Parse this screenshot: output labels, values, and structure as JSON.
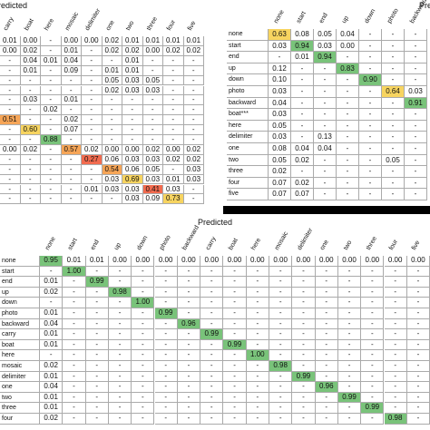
{
  "tables": [
    {
      "title": "Predicted",
      "columns": [
        "carry",
        "boat",
        "here",
        "mosaic",
        "delimiter",
        "one",
        "two",
        "three",
        "four",
        "five"
      ],
      "rows": [
        {
          "cells": [
            "0.01",
            "0.00",
            "-",
            "0.00",
            "0.00",
            "0.02",
            "0.01",
            "0.01",
            "0.01",
            "0.01"
          ]
        },
        {
          "cells": [
            "0.00",
            "0.02",
            "-",
            "0.01",
            "-",
            "0.02",
            "0.02",
            "0.00",
            "0.02",
            "0.02"
          ]
        },
        {
          "cells": [
            "-",
            "0.04",
            "0.01",
            "0.04",
            "-",
            "-",
            "0.01",
            "-",
            "-",
            "-"
          ]
        },
        {
          "cells": [
            "-",
            "0.01",
            "-",
            "0.09",
            "-",
            "0.01",
            "0.01",
            "-",
            "-",
            "-"
          ]
        },
        {
          "cells": [
            "-",
            "-",
            "-",
            "-",
            "-",
            "0.05",
            "0.03",
            "0.05",
            "-",
            "-"
          ]
        },
        {
          "cells": [
            "-",
            "-",
            "-",
            "-",
            "-",
            "0.02",
            "0.03",
            "0.03",
            "-",
            "-"
          ]
        },
        {
          "cells": [
            "-",
            "0.03",
            "-",
            "0.01",
            "-",
            "-",
            "-",
            "-",
            "-",
            "-"
          ]
        },
        {
          "cells": [
            "-",
            "-",
            "0.02",
            "-",
            "-",
            "-",
            "-",
            "-",
            "-",
            "-"
          ]
        },
        {
          "cells": [
            "0.51",
            "-",
            "-",
            "0.02",
            "-",
            "-",
            "-",
            "-",
            "-",
            "-"
          ]
        },
        {
          "cells": [
            "-",
            "0.60",
            "-",
            "0.07",
            "-",
            "-",
            "-",
            "-",
            "-",
            "-"
          ]
        },
        {
          "cells": [
            "-",
            "-",
            "0.88",
            "-",
            "-",
            "-",
            "-",
            "-",
            "-",
            "-"
          ]
        },
        {
          "cells": [
            "0.00",
            "0.02",
            "-",
            "0.57",
            "0.02",
            "0.00",
            "0.00",
            "0.02",
            "0.00",
            "0.02"
          ]
        },
        {
          "cells": [
            "-",
            "-",
            "-",
            "-",
            "0.27",
            "0.06",
            "0.03",
            "0.03",
            "0.02",
            "0.02"
          ]
        },
        {
          "cells": [
            "-",
            "-",
            "-",
            "-",
            "-",
            "0.54",
            "0.06",
            "0.05",
            "-",
            "0.03"
          ]
        },
        {
          "cells": [
            "-",
            "-",
            "-",
            "-",
            "-",
            "0.03",
            "0.69",
            "0.03",
            "0.01",
            "0.03"
          ]
        },
        {
          "cells": [
            "-",
            "-",
            "-",
            "-",
            "0.01",
            "0.03",
            "0.03",
            "0.41",
            "0.03",
            "-"
          ]
        },
        {
          "cells": [
            "-",
            "-",
            "-",
            "-",
            "-",
            "-",
            "0.03",
            "0.09",
            "0.73",
            "-"
          ]
        }
      ]
    },
    {
      "title": "Predicted",
      "columns": [
        "none",
        "start",
        "end",
        "up",
        "down",
        "photo",
        "backward"
      ],
      "rows": [
        {
          "label": "none",
          "cells": [
            "0.63",
            "0.08",
            "0.05",
            "0.04",
            "-",
            "-",
            "-"
          ]
        },
        {
          "label": "start",
          "cells": [
            "0.03",
            "0.94",
            "0.03",
            "0.00",
            "-",
            "-",
            "-"
          ]
        },
        {
          "label": "end",
          "cells": [
            "-",
            "0.01",
            "0.94",
            "-",
            "-",
            "-",
            "-"
          ]
        },
        {
          "label": "up",
          "cells": [
            "0.12",
            "-",
            "-",
            "0.83",
            "-",
            "-",
            "-"
          ]
        },
        {
          "label": "down",
          "cells": [
            "0.10",
            "-",
            "-",
            "-",
            "0.90",
            "-",
            "-"
          ]
        },
        {
          "label": "photo",
          "cells": [
            "0.03",
            "-",
            "-",
            "-",
            "-",
            "0.64",
            "0.03"
          ]
        },
        {
          "label": "backward",
          "cells": [
            "0.04",
            "-",
            "-",
            "-",
            "-",
            "-",
            "0.91"
          ]
        },
        {
          "label": "boat***",
          "cells": [
            "0.03",
            "-",
            "-",
            "-",
            "-",
            "-",
            "-"
          ]
        },
        {
          "label": "here",
          "cells": [
            "0.05",
            "-",
            "-",
            "-",
            "-",
            "-",
            "-"
          ]
        },
        {
          "label": "delimiter",
          "cells": [
            "0.03",
            "-",
            "0.13",
            "-",
            "-",
            "-",
            "-"
          ]
        },
        {
          "label": "one",
          "cells": [
            "0.08",
            "0.04",
            "0.04",
            "-",
            "-",
            "-",
            "-"
          ]
        },
        {
          "label": "two",
          "cells": [
            "0.05",
            "0.02",
            "-",
            "-",
            "-",
            "0.05",
            "-"
          ]
        },
        {
          "label": "three",
          "cells": [
            "0.02",
            "-",
            "-",
            "-",
            "-",
            "-",
            "-"
          ]
        },
        {
          "label": "four",
          "cells": [
            "0.07",
            "0.02",
            "-",
            "-",
            "-",
            "-",
            "-"
          ]
        },
        {
          "label": "five",
          "cells": [
            "0.07",
            "0.07",
            "-",
            "-",
            "-",
            "-",
            "-"
          ]
        }
      ]
    },
    {
      "title": "Predicted",
      "columns": [
        "none",
        "start",
        "end",
        "up",
        "down",
        "photo",
        "backward",
        "carry",
        "boat",
        "here",
        "mosaic",
        "delimiter",
        "one",
        "two",
        "three",
        "four",
        "five"
      ],
      "rows": [
        {
          "label": "none",
          "cells": [
            "0.95",
            "0.01",
            "0.01",
            "0.00",
            "0.00",
            "0.00",
            "0.00",
            "0.00",
            "0.00",
            "0.00",
            "0.00",
            "0.00",
            "0.00",
            "0.00",
            "0.00",
            "0.00",
            "0.00"
          ]
        },
        {
          "label": "start",
          "cells": [
            "-",
            "1.00",
            "-",
            "-",
            "-",
            "-",
            "-",
            "-",
            "-",
            "-",
            "-",
            "-",
            "-",
            "-",
            "-",
            "-",
            "-"
          ]
        },
        {
          "label": "end",
          "cells": [
            "0.01",
            "-",
            "0.99",
            "-",
            "-",
            "-",
            "-",
            "-",
            "-",
            "-",
            "-",
            "-",
            "-",
            "-",
            "-",
            "-",
            "-"
          ]
        },
        {
          "label": "up",
          "cells": [
            "0.02",
            "-",
            "-",
            "0.98",
            "-",
            "-",
            "-",
            "-",
            "-",
            "-",
            "-",
            "-",
            "-",
            "-",
            "-",
            "-",
            "-"
          ]
        },
        {
          "label": "down",
          "cells": [
            "-",
            "-",
            "-",
            "-",
            "1.00",
            "-",
            "-",
            "-",
            "-",
            "-",
            "-",
            "-",
            "-",
            "-",
            "-",
            "-",
            "-"
          ]
        },
        {
          "label": "photo",
          "cells": [
            "0.01",
            "-",
            "-",
            "-",
            "-",
            "0.99",
            "-",
            "-",
            "-",
            "-",
            "-",
            "-",
            "-",
            "-",
            "-",
            "-",
            "-"
          ]
        },
        {
          "label": "backward",
          "cells": [
            "0.04",
            "-",
            "-",
            "-",
            "-",
            "-",
            "0.96",
            "-",
            "-",
            "-",
            "-",
            "-",
            "-",
            "-",
            "-",
            "-",
            "-"
          ]
        },
        {
          "label": "carry",
          "cells": [
            "0.01",
            "-",
            "-",
            "-",
            "-",
            "-",
            "-",
            "0.99",
            "-",
            "-",
            "-",
            "-",
            "-",
            "-",
            "-",
            "-",
            "-"
          ]
        },
        {
          "label": "boat",
          "cells": [
            "0.01",
            "-",
            "-",
            "-",
            "-",
            "-",
            "-",
            "-",
            "0.99",
            "-",
            "-",
            "-",
            "-",
            "-",
            "-",
            "-",
            "-"
          ]
        },
        {
          "label": "here",
          "cells": [
            "-",
            "-",
            "-",
            "-",
            "-",
            "-",
            "-",
            "-",
            "-",
            "1.00",
            "-",
            "-",
            "-",
            "-",
            "-",
            "-",
            "-"
          ]
        },
        {
          "label": "mosaic",
          "cells": [
            "0.02",
            "-",
            "-",
            "-",
            "-",
            "-",
            "-",
            "-",
            "-",
            "-",
            "0.98",
            "-",
            "-",
            "-",
            "-",
            "-",
            "-"
          ]
        },
        {
          "label": "delimiter",
          "cells": [
            "0.01",
            "-",
            "-",
            "-",
            "-",
            "-",
            "-",
            "-",
            "-",
            "-",
            "-",
            "0.99",
            "-",
            "-",
            "-",
            "-",
            "-"
          ]
        },
        {
          "label": "one",
          "cells": [
            "0.04",
            "-",
            "-",
            "-",
            "-",
            "-",
            "-",
            "-",
            "-",
            "-",
            "-",
            "-",
            "0.96",
            "-",
            "-",
            "-",
            "-"
          ]
        },
        {
          "label": "two",
          "cells": [
            "0.01",
            "-",
            "-",
            "-",
            "-",
            "-",
            "-",
            "-",
            "-",
            "-",
            "-",
            "-",
            "-",
            "0.99",
            "-",
            "-",
            "-"
          ]
        },
        {
          "label": "three",
          "cells": [
            "0.01",
            "-",
            "-",
            "-",
            "-",
            "-",
            "-",
            "-",
            "-",
            "-",
            "-",
            "-",
            "-",
            "-",
            "0.99",
            "-",
            "-"
          ]
        },
        {
          "label": "four",
          "cells": [
            "0.02",
            "-",
            "-",
            "-",
            "-",
            "-",
            "-",
            "-",
            "-",
            "-",
            "-",
            "-",
            "-",
            "-",
            "-",
            "0.98",
            "-"
          ]
        }
      ]
    }
  ]
}
